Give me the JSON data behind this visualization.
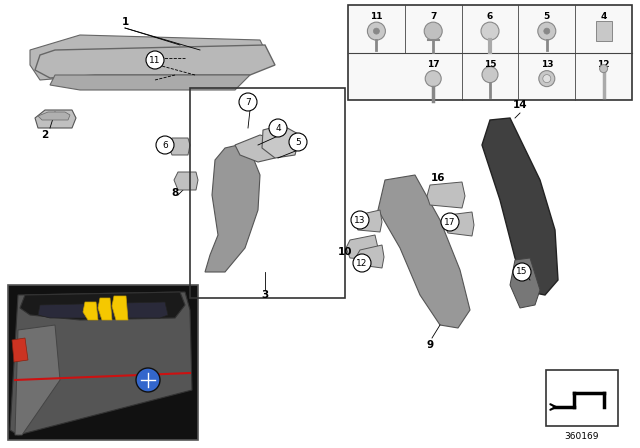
{
  "bg_color": "#ffffff",
  "fig_width": 6.4,
  "fig_height": 4.48,
  "dpi": 100,
  "part_number": "360169",
  "grid_bg": "#f0f0f0",
  "grid_border": "#555555",
  "part_color_light": "#b8b8b8",
  "part_color_mid": "#989898",
  "part_color_dark": "#404040",
  "part_color_clip": "#c0c0c0"
}
